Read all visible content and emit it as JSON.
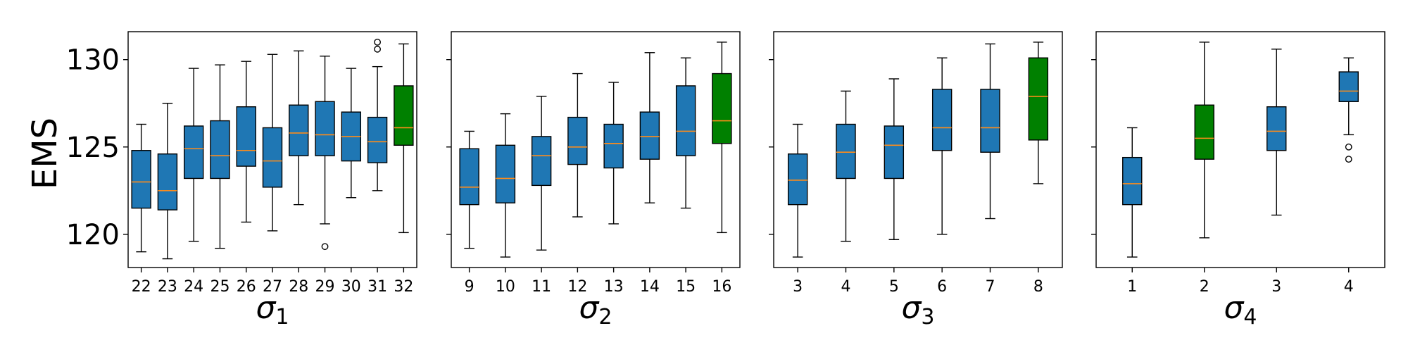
{
  "colors": {
    "box_default": "#1f77b4",
    "box_highlight": "#008000",
    "median": "#ff8c1a"
  },
  "ylabel": "EMS",
  "yticks": [
    "120",
    "125",
    "130"
  ],
  "chart_data": [
    {
      "type": "box",
      "xlabel": "σ1",
      "ylabel": "EMS",
      "ylim": [
        118.1,
        131.6
      ],
      "categories": [
        "22",
        "23",
        "24",
        "25",
        "26",
        "27",
        "28",
        "29",
        "30",
        "31",
        "32"
      ],
      "highlight": "32",
      "boxes": [
        {
          "whislo": 119.0,
          "q1": 121.5,
          "med": 123.0,
          "q3": 124.8,
          "whishi": 126.3,
          "fliers": []
        },
        {
          "whislo": 118.6,
          "q1": 121.4,
          "med": 122.5,
          "q3": 124.6,
          "whishi": 127.5,
          "fliers": []
        },
        {
          "whislo": 119.6,
          "q1": 123.2,
          "med": 124.9,
          "q3": 126.2,
          "whishi": 129.5,
          "fliers": []
        },
        {
          "whislo": 119.2,
          "q1": 123.2,
          "med": 124.5,
          "q3": 126.5,
          "whishi": 129.7,
          "fliers": []
        },
        {
          "whislo": 120.7,
          "q1": 123.9,
          "med": 124.8,
          "q3": 127.3,
          "whishi": 129.9,
          "fliers": []
        },
        {
          "whislo": 120.2,
          "q1": 122.7,
          "med": 124.2,
          "q3": 126.1,
          "whishi": 130.3,
          "fliers": []
        },
        {
          "whislo": 121.7,
          "q1": 124.5,
          "med": 125.8,
          "q3": 127.4,
          "whishi": 130.5,
          "fliers": []
        },
        {
          "whislo": 120.6,
          "q1": 124.5,
          "med": 125.7,
          "q3": 127.6,
          "whishi": 130.2,
          "fliers": [
            119.3
          ]
        },
        {
          "whislo": 122.1,
          "q1": 124.2,
          "med": 125.6,
          "q3": 127.0,
          "whishi": 129.5,
          "fliers": []
        },
        {
          "whislo": 122.5,
          "q1": 124.1,
          "med": 125.3,
          "q3": 126.7,
          "whishi": 129.6,
          "fliers": [
            130.6,
            131.0
          ]
        },
        {
          "whislo": 120.1,
          "q1": 125.1,
          "med": 126.1,
          "q3": 128.5,
          "whishi": 130.9,
          "fliers": []
        }
      ]
    },
    {
      "type": "box",
      "xlabel": "σ2",
      "ylim": [
        118.1,
        131.6
      ],
      "categories": [
        "9",
        "10",
        "11",
        "12",
        "13",
        "14",
        "15",
        "16"
      ],
      "highlight": "16",
      "boxes": [
        {
          "whislo": 119.2,
          "q1": 121.7,
          "med": 122.7,
          "q3": 124.9,
          "whishi": 125.9,
          "fliers": []
        },
        {
          "whislo": 118.7,
          "q1": 121.8,
          "med": 123.2,
          "q3": 125.1,
          "whishi": 126.9,
          "fliers": []
        },
        {
          "whislo": 119.1,
          "q1": 122.8,
          "med": 124.5,
          "q3": 125.6,
          "whishi": 127.9,
          "fliers": []
        },
        {
          "whislo": 121.0,
          "q1": 124.0,
          "med": 125.0,
          "q3": 126.7,
          "whishi": 129.2,
          "fliers": []
        },
        {
          "whislo": 120.6,
          "q1": 123.8,
          "med": 125.2,
          "q3": 126.3,
          "whishi": 128.7,
          "fliers": []
        },
        {
          "whislo": 121.8,
          "q1": 124.3,
          "med": 125.6,
          "q3": 127.0,
          "whishi": 130.4,
          "fliers": []
        },
        {
          "whislo": 121.5,
          "q1": 124.5,
          "med": 125.9,
          "q3": 128.5,
          "whishi": 130.1,
          "fliers": []
        },
        {
          "whislo": 120.1,
          "q1": 125.2,
          "med": 126.5,
          "q3": 129.2,
          "whishi": 131.0,
          "fliers": []
        }
      ]
    },
    {
      "type": "box",
      "xlabel": "σ3",
      "ylim": [
        118.1,
        131.6
      ],
      "categories": [
        "3",
        "4",
        "5",
        "6",
        "7",
        "8"
      ],
      "highlight": "8",
      "boxes": [
        {
          "whislo": 118.7,
          "q1": 121.7,
          "med": 123.1,
          "q3": 124.6,
          "whishi": 126.3,
          "fliers": []
        },
        {
          "whislo": 119.6,
          "q1": 123.2,
          "med": 124.7,
          "q3": 126.3,
          "whishi": 128.2,
          "fliers": []
        },
        {
          "whislo": 119.7,
          "q1": 123.2,
          "med": 125.1,
          "q3": 126.2,
          "whishi": 128.9,
          "fliers": []
        },
        {
          "whislo": 120.0,
          "q1": 124.8,
          "med": 126.1,
          "q3": 128.3,
          "whishi": 130.1,
          "fliers": []
        },
        {
          "whislo": 120.9,
          "q1": 124.7,
          "med": 126.1,
          "q3": 128.3,
          "whishi": 130.9,
          "fliers": []
        },
        {
          "whislo": 122.9,
          "q1": 125.4,
          "med": 127.9,
          "q3": 130.1,
          "whishi": 131.0,
          "fliers": []
        }
      ]
    },
    {
      "type": "box",
      "xlabel": "σ4",
      "ylim": [
        118.1,
        131.6
      ],
      "categories": [
        "1",
        "2",
        "3",
        "4"
      ],
      "highlight": "2",
      "boxes": [
        {
          "whislo": 118.7,
          "q1": 121.7,
          "med": 122.9,
          "q3": 124.4,
          "whishi": 126.1,
          "fliers": []
        },
        {
          "whislo": 119.8,
          "q1": 124.3,
          "med": 125.5,
          "q3": 127.4,
          "whishi": 131.0,
          "fliers": []
        },
        {
          "whislo": 121.1,
          "q1": 124.8,
          "med": 125.9,
          "q3": 127.3,
          "whishi": 130.6,
          "fliers": []
        },
        {
          "whislo": 125.7,
          "q1": 127.6,
          "med": 128.2,
          "q3": 129.3,
          "whishi": 130.1,
          "fliers": [
            124.3,
            125.0
          ]
        }
      ]
    }
  ]
}
